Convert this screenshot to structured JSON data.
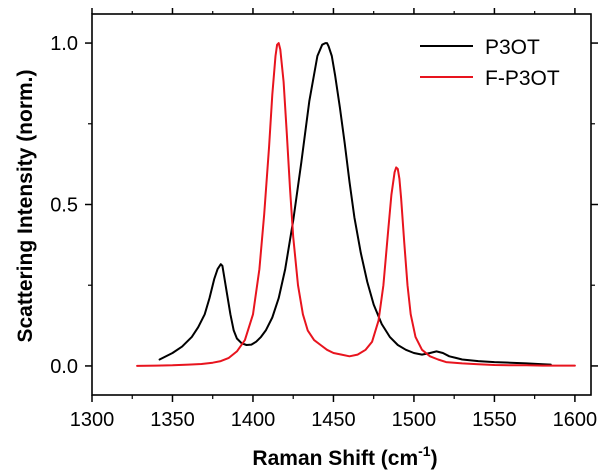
{
  "chart_data": {
    "type": "line",
    "xlabel": "Raman Shift (cm",
    "xlabel_sup": "-1",
    "xlabel_suffix": ")",
    "ylabel": "Scattering Intensity (norm.)",
    "xlim": [
      1300,
      1610
    ],
    "ylim": [
      -0.09,
      1.09
    ],
    "x_ticks": [
      1300,
      1350,
      1400,
      1450,
      1500,
      1550,
      1600
    ],
    "x_tick_labels": [
      "1300",
      "1350",
      "1400",
      "1450",
      "1500",
      "1550",
      "1600"
    ],
    "y_ticks": [
      0.0,
      0.5,
      1.0
    ],
    "y_tick_labels": [
      "0.0",
      "0.5",
      "1.0"
    ],
    "grid": false,
    "legend_position": "top-right",
    "series": [
      {
        "name": "P3OT",
        "color": "#000000",
        "x": [
          1342,
          1350,
          1356,
          1362,
          1366,
          1370,
          1373,
          1376,
          1378,
          1380,
          1381,
          1382,
          1384,
          1386,
          1388,
          1390,
          1393,
          1396,
          1399,
          1402,
          1405,
          1408,
          1412,
          1416,
          1420,
          1425,
          1430,
          1435,
          1440,
          1443,
          1445,
          1446,
          1447,
          1449,
          1451,
          1454,
          1457,
          1460,
          1463,
          1467,
          1471,
          1475,
          1480,
          1485,
          1490,
          1495,
          1500,
          1505,
          1510,
          1514,
          1518,
          1522,
          1526,
          1530,
          1540,
          1550,
          1560,
          1570,
          1580,
          1585
        ],
        "values": [
          0.02,
          0.04,
          0.06,
          0.09,
          0.12,
          0.16,
          0.21,
          0.27,
          0.3,
          0.315,
          0.31,
          0.28,
          0.22,
          0.16,
          0.11,
          0.085,
          0.07,
          0.065,
          0.066,
          0.075,
          0.09,
          0.11,
          0.15,
          0.21,
          0.3,
          0.45,
          0.63,
          0.82,
          0.96,
          0.995,
          1.0,
          1.0,
          0.99,
          0.96,
          0.9,
          0.8,
          0.69,
          0.57,
          0.46,
          0.35,
          0.26,
          0.19,
          0.13,
          0.09,
          0.065,
          0.05,
          0.04,
          0.035,
          0.04,
          0.045,
          0.04,
          0.03,
          0.025,
          0.02,
          0.015,
          0.012,
          0.01,
          0.008,
          0.005,
          0.004
        ]
      },
      {
        "name": "F-P3OT",
        "color": "#e8141e",
        "x": [
          1328,
          1340,
          1350,
          1360,
          1368,
          1375,
          1380,
          1385,
          1390,
          1395,
          1400,
          1404,
          1407,
          1410,
          1412,
          1414,
          1415,
          1416,
          1417,
          1419,
          1421,
          1423,
          1425,
          1428,
          1431,
          1434,
          1438,
          1442,
          1446,
          1450,
          1455,
          1460,
          1465,
          1470,
          1474,
          1478,
          1481,
          1484,
          1486,
          1488,
          1489,
          1490,
          1491,
          1492,
          1494,
          1496,
          1498,
          1501,
          1505,
          1510,
          1515,
          1520,
          1530,
          1540,
          1550,
          1560,
          1570,
          1580,
          1590,
          1600
        ],
        "values": [
          0.0,
          0.001,
          0.002,
          0.004,
          0.006,
          0.01,
          0.015,
          0.025,
          0.045,
          0.08,
          0.16,
          0.3,
          0.47,
          0.68,
          0.84,
          0.96,
          0.995,
          1.0,
          0.98,
          0.88,
          0.72,
          0.55,
          0.4,
          0.25,
          0.16,
          0.11,
          0.08,
          0.065,
          0.05,
          0.04,
          0.035,
          0.03,
          0.035,
          0.05,
          0.075,
          0.14,
          0.25,
          0.42,
          0.53,
          0.6,
          0.615,
          0.61,
          0.58,
          0.52,
          0.38,
          0.25,
          0.16,
          0.09,
          0.05,
          0.03,
          0.02,
          0.012,
          0.008,
          0.005,
          0.003,
          0.002,
          0.002,
          0.001,
          0.001,
          0.001
        ]
      }
    ]
  }
}
